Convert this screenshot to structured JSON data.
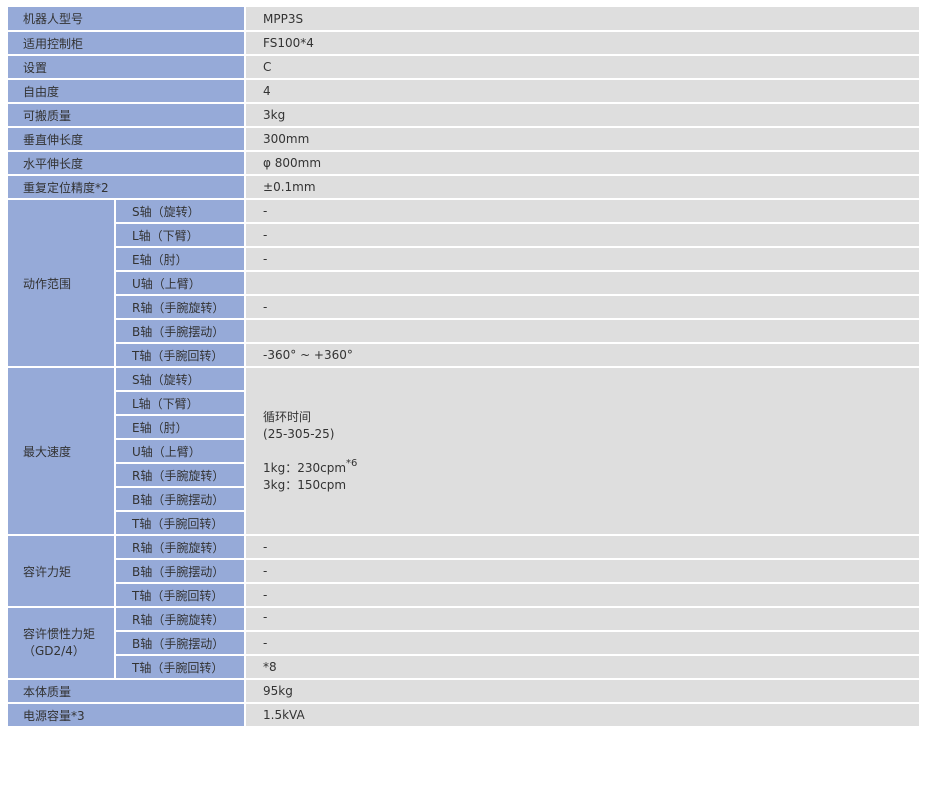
{
  "rows_top": [
    {
      "label": "机器人型号",
      "value": "MPP3S"
    },
    {
      "label": "适用控制柜",
      "value": "FS100*4"
    },
    {
      "label": "设置",
      "value": "C"
    },
    {
      "label": "自由度",
      "value": "4"
    },
    {
      "label": "可搬质量",
      "value": "3kg"
    },
    {
      "label": "垂直伸长度",
      "value": "300mm"
    },
    {
      "label": "水平伸长度",
      "value": "φ 800mm"
    },
    {
      "label": "重复定位精度*2",
      "value": "±0.1mm"
    }
  ],
  "motion_range": {
    "label": "动作范围",
    "axes": [
      {
        "axis": "S轴（旋转）",
        "value": "-"
      },
      {
        "axis": "L轴（下臂）",
        "value": "-"
      },
      {
        "axis": "E轴（肘）",
        "value": "-"
      },
      {
        "axis": "U轴（上臂）",
        "value": ""
      },
      {
        "axis": "R轴（手腕旋转）",
        "value": "-"
      },
      {
        "axis": "B轴（手腕摆动）",
        "value": ""
      },
      {
        "axis": "T轴（手腕回转）",
        "value": "-360° ~ +360°"
      }
    ]
  },
  "max_speed": {
    "label": "最大速度",
    "axes": [
      "S轴（旋转）",
      "L轴（下臂）",
      "E轴（肘）",
      "U轴（上臂）",
      "R轴（手腕旋转）",
      "B轴（手腕摆动）",
      "T轴（手腕回转）"
    ],
    "line1": "循环时间",
    "line2": "(25-305-25)",
    "line3": "1kg：230cpm",
    "line3_sup": "*6",
    "line4": "3kg：150cpm"
  },
  "allow_torque": {
    "label": "容许力矩",
    "axes": [
      {
        "axis": "R轴（手腕旋转）",
        "value": "-"
      },
      {
        "axis": "B轴（手腕摆动）",
        "value": "-"
      },
      {
        "axis": "T轴（手腕回转）",
        "value": "-"
      }
    ]
  },
  "allow_inertia": {
    "label_line1": "容许惯性力矩",
    "label_line2": "（GD2/4）",
    "axes": [
      {
        "axis": "R轴（手腕旋转）",
        "value": "-"
      },
      {
        "axis": "B轴（手腕摆动）",
        "value": "-"
      },
      {
        "axis": "T轴（手腕回转）",
        "value": "*8"
      }
    ]
  },
  "rows_bottom": [
    {
      "label": "本体质量",
      "value": "95kg"
    },
    {
      "label": "电源容量*3",
      "value": "1.5kVA"
    }
  ]
}
